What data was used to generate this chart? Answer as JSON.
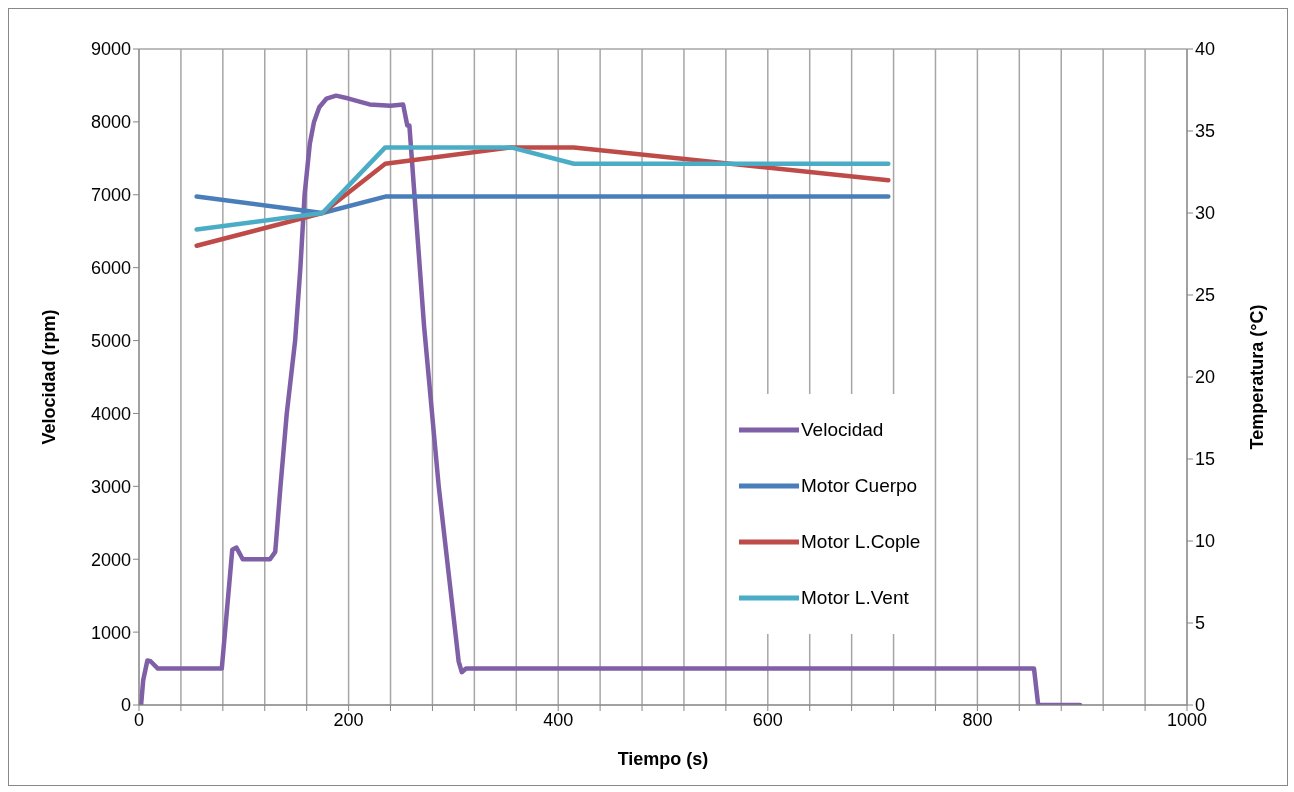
{
  "chart_data": {
    "type": "line",
    "xlabel": "Tiempo (s)",
    "ylabel": "Velocidad (rpm)",
    "y2label": "Temperatura (°C)",
    "xlim": [
      0,
      1000
    ],
    "xticks": [
      0,
      {
        "value": 40,
        "label": null
      },
      {
        "value": 80,
        "label": null
      },
      {
        "value": 120,
        "label": null
      },
      {
        "value": 160,
        "label": null
      },
      200,
      {
        "value": 240,
        "label": null
      },
      {
        "value": 280,
        "label": null
      },
      {
        "value": 320,
        "label": null
      },
      {
        "value": 360,
        "label": null
      },
      400,
      {
        "value": 440,
        "label": null
      },
      {
        "value": 480,
        "label": null
      },
      {
        "value": 520,
        "label": null
      },
      {
        "value": 560,
        "label": null
      },
      600,
      {
        "value": 640,
        "label": null
      },
      {
        "value": 680,
        "label": null
      },
      {
        "value": 720,
        "label": null
      },
      {
        "value": 760,
        "label": null
      },
      800,
      {
        "value": 840,
        "label": null
      },
      {
        "value": 880,
        "label": null
      },
      {
        "value": 920,
        "label": null
      },
      {
        "value": 960,
        "label": null
      },
      1000
    ],
    "ylim": [
      0,
      9000
    ],
    "yticks": [
      0,
      1000,
      2000,
      3000,
      4000,
      5000,
      6000,
      7000,
      8000,
      9000
    ],
    "y2lim": [
      0,
      40
    ],
    "y2ticks": [
      0,
      5,
      10,
      15,
      20,
      25,
      30,
      35,
      40
    ],
    "grid": true,
    "legend": "right",
    "marker": "none",
    "line_style": "solid",
    "series": [
      {
        "name": "Velocidad",
        "color": "#7f5fa6",
        "x": [
          2,
          4,
          8,
          11,
          18,
          79,
          89,
          93,
          99,
          125,
          130,
          135,
          141,
          149,
          154,
          158,
          163,
          167,
          172,
          179,
          188,
          200,
          220,
          240,
          252,
          256,
          258,
          272,
          286,
          305,
          308,
          312,
          854,
          858,
          898
        ],
        "values": [
          0,
          340,
          610,
          600,
          500,
          500,
          2130,
          2160,
          2000,
          2000,
          2100,
          3000,
          4000,
          5000,
          6000,
          7000,
          7700,
          8000,
          8200,
          8320,
          8360,
          8320,
          8240,
          8220,
          8240,
          7950,
          7950,
          5200,
          3000,
          600,
          450,
          500,
          500,
          0,
          0
        ]
      },
      {
        "name": "Motor Cuerpo",
        "color": "#4a7ebb",
        "axis": "y2",
        "x": [
          55,
          175,
          235,
          715
        ],
        "values": [
          31,
          30,
          31,
          31
        ]
      },
      {
        "name": "Motor L.Cople",
        "color": "#be4b48",
        "axis": "y2",
        "x": [
          55,
          175,
          235,
          355,
          415,
          715
        ],
        "values": [
          28,
          30,
          33,
          34,
          34,
          32
        ]
      },
      {
        "name": "Motor L.Vent",
        "color": "#4bacc6",
        "axis": "y2",
        "x": [
          55,
          175,
          235,
          355,
          415,
          715
        ],
        "values": [
          29,
          30,
          34,
          34,
          33,
          33
        ]
      }
    ]
  }
}
